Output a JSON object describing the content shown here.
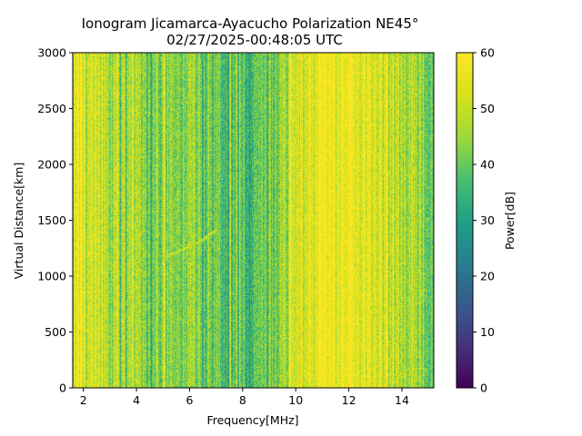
{
  "chart_data": {
    "type": "heatmap",
    "title": "Ionogram Jicamarca-Ayacucho Polarization NE45°",
    "subtitle": "02/27/2025-00:48:05 UTC",
    "xlabel": "Frequency[MHz]",
    "ylabel": "Virtual Distance[km]",
    "xlim": [
      1.6,
      15.2
    ],
    "ylim": [
      0,
      3000
    ],
    "xticks": [
      2,
      4,
      6,
      8,
      10,
      12,
      14
    ],
    "xtick_labels": [
      "2",
      "4",
      "6",
      "8",
      "10",
      "12",
      "14"
    ],
    "yticks": [
      0,
      500,
      1000,
      1500,
      2000,
      2500,
      3000
    ],
    "ytick_labels": [
      "0",
      "500",
      "1000",
      "1500",
      "2000",
      "2500",
      "3000"
    ],
    "colorbar": {
      "label": "Power[dB]",
      "range": [
        0,
        60
      ],
      "ticks": [
        0,
        10,
        20,
        30,
        40,
        50,
        60
      ],
      "tick_labels": [
        "0",
        "10",
        "20",
        "30",
        "40",
        "50",
        "60"
      ],
      "colormap": "viridis"
    },
    "power_profile_db": {
      "frequency_mhz": [
        1.6,
        2.0,
        2.5,
        3.0,
        3.5,
        4.0,
        4.5,
        5.0,
        5.5,
        6.0,
        6.5,
        7.0,
        7.5,
        8.0,
        8.5,
        9.0,
        9.5,
        10.0,
        10.5,
        11.0,
        11.5,
        12.0,
        12.5,
        13.0,
        13.5,
        14.0,
        14.5,
        15.0,
        15.2
      ],
      "power_db": [
        52,
        55,
        50,
        48,
        46,
        44,
        42,
        43,
        44,
        45,
        42,
        40,
        38,
        37,
        38,
        40,
        46,
        50,
        55,
        58,
        60,
        58,
        55,
        52,
        50,
        47,
        45,
        42,
        40
      ]
    },
    "trace": {
      "label": "faint oblique echo",
      "points": [
        {
          "f": 5.0,
          "d": 1170
        },
        {
          "f": 5.8,
          "d": 1250
        },
        {
          "f": 6.5,
          "d": 1330
        },
        {
          "f": 7.0,
          "d": 1420
        }
      ]
    }
  }
}
